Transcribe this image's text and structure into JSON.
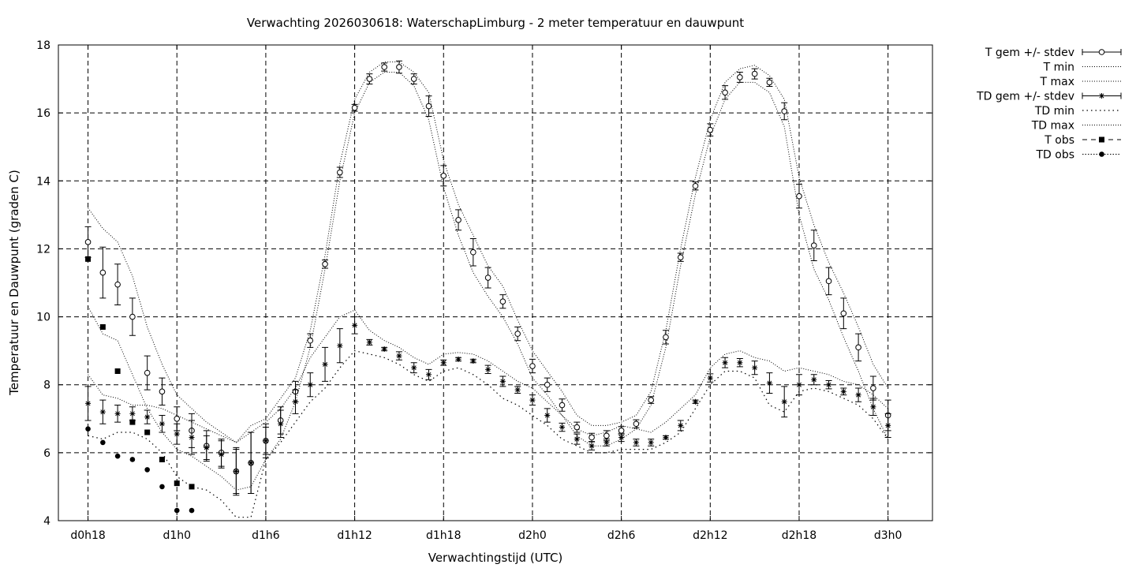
{
  "chart_data": {
    "type": "line",
    "title": "Verwachting 2026030618: WaterschapLimburg - 2 meter temperatuur en dauwpunt",
    "xlabel": "Verwachtingstijd (UTC)",
    "ylabel": "Temperatuur en Dauwpunt (graden C)",
    "x_unit": "hours",
    "xlim": [
      -2,
      57
    ],
    "ylim": [
      4,
      18
    ],
    "x_ticks": [
      {
        "x": 0,
        "label": "d0h18"
      },
      {
        "x": 6,
        "label": "d1h0"
      },
      {
        "x": 12,
        "label": "d1h6"
      },
      {
        "x": 18,
        "label": "d1h12"
      },
      {
        "x": 24,
        "label": "d1h18"
      },
      {
        "x": 30,
        "label": "d2h0"
      },
      {
        "x": 36,
        "label": "d2h6"
      },
      {
        "x": 42,
        "label": "d2h12"
      },
      {
        "x": 48,
        "label": "d2h18"
      },
      {
        "x": 54,
        "label": "d3h0"
      }
    ],
    "y_ticks": [
      4,
      6,
      8,
      10,
      12,
      14,
      16,
      18
    ],
    "grid": true,
    "legend_position": "right",
    "series": [
      {
        "name": "T gem +/- stdev",
        "kind": "errorbar",
        "marker": "open-circle",
        "x": [
          0,
          1,
          2,
          3,
          4,
          5,
          6,
          7,
          8,
          9,
          10,
          11,
          12,
          13,
          14,
          15,
          16,
          17,
          18,
          19,
          20,
          21,
          22,
          23,
          24,
          25,
          26,
          27,
          28,
          29,
          30,
          31,
          32,
          33,
          34,
          35,
          36,
          37,
          38,
          39,
          40,
          41,
          42,
          43,
          44,
          45,
          46,
          47,
          48,
          49,
          50,
          51,
          52,
          53,
          54
        ],
        "y": [
          12.2,
          11.3,
          10.95,
          10.0,
          8.35,
          7.8,
          7.0,
          6.65,
          6.2,
          6.0,
          5.45,
          5.7,
          6.35,
          6.95,
          7.8,
          9.3,
          11.55,
          14.25,
          16.15,
          17.0,
          17.35,
          17.35,
          17.0,
          16.2,
          14.15,
          12.85,
          11.9,
          11.15,
          10.45,
          9.5,
          8.55,
          8.0,
          7.4,
          6.75,
          6.45,
          6.5,
          6.65,
          6.85,
          7.55,
          9.4,
          11.75,
          13.85,
          15.5,
          16.6,
          17.05,
          17.15,
          16.9,
          16.05,
          13.55,
          12.1,
          11.05,
          10.1,
          9.1,
          7.9,
          7.1
        ],
        "err": [
          0.45,
          0.75,
          0.6,
          0.55,
          0.5,
          0.4,
          0.35,
          0.5,
          0.45,
          0.4,
          0.7,
          0.9,
          0.5,
          0.4,
          0.3,
          0.2,
          0.12,
          0.15,
          0.1,
          0.15,
          0.12,
          0.18,
          0.15,
          0.3,
          0.3,
          0.3,
          0.4,
          0.3,
          0.2,
          0.2,
          0.2,
          0.2,
          0.18,
          0.15,
          0.12,
          0.15,
          0.12,
          0.12,
          0.1,
          0.2,
          0.12,
          0.12,
          0.18,
          0.2,
          0.15,
          0.15,
          0.12,
          0.25,
          0.35,
          0.45,
          0.4,
          0.45,
          0.4,
          0.35,
          0.45
        ]
      },
      {
        "name": "T min",
        "kind": "line",
        "x": [
          0,
          1,
          2,
          3,
          4,
          5,
          6,
          7,
          8,
          9,
          10,
          11,
          12,
          13,
          14,
          15,
          16,
          17,
          18,
          19,
          20,
          21,
          22,
          23,
          24,
          25,
          26,
          27,
          28,
          29,
          30,
          31,
          32,
          33,
          34,
          35,
          36,
          37,
          38,
          39,
          40,
          41,
          42,
          43,
          44,
          45,
          46,
          47,
          48,
          49,
          50,
          51,
          52,
          53,
          54
        ],
        "y": [
          10.3,
          9.5,
          9.3,
          8.3,
          7.3,
          6.6,
          6.1,
          5.9,
          5.6,
          5.3,
          4.9,
          5.0,
          5.8,
          6.4,
          7.5,
          9.1,
          11.4,
          14.0,
          16.0,
          16.9,
          17.2,
          17.2,
          16.8,
          15.8,
          13.8,
          12.4,
          11.3,
          10.6,
          10.0,
          9.2,
          8.2,
          7.7,
          7.1,
          6.5,
          6.2,
          6.2,
          6.4,
          6.7,
          7.4,
          9.1,
          11.5,
          13.6,
          15.3,
          16.4,
          16.9,
          16.9,
          16.6,
          15.6,
          13.0,
          11.4,
          10.5,
          9.4,
          8.4,
          7.3,
          6.4
        ]
      },
      {
        "name": "T max",
        "kind": "line",
        "x": [
          0,
          1,
          2,
          3,
          4,
          5,
          6,
          7,
          8,
          9,
          10,
          11,
          12,
          13,
          14,
          15,
          16,
          17,
          18,
          19,
          20,
          21,
          22,
          23,
          24,
          25,
          26,
          27,
          28,
          29,
          30,
          31,
          32,
          33,
          34,
          35,
          36,
          37,
          38,
          39,
          40,
          41,
          42,
          43,
          44,
          45,
          46,
          47,
          48,
          49,
          50,
          51,
          52,
          53,
          54
        ],
        "y": [
          13.2,
          12.6,
          12.2,
          11.2,
          9.7,
          8.6,
          7.7,
          7.3,
          6.9,
          6.6,
          6.3,
          6.8,
          7.0,
          7.6,
          8.2,
          9.6,
          11.8,
          14.5,
          16.4,
          17.2,
          17.5,
          17.5,
          17.2,
          16.6,
          14.6,
          13.3,
          12.4,
          11.5,
          10.9,
          9.9,
          9.0,
          8.4,
          7.8,
          7.1,
          6.8,
          6.8,
          6.9,
          7.1,
          7.8,
          9.6,
          12.0,
          14.1,
          15.8,
          16.9,
          17.3,
          17.4,
          17.1,
          16.4,
          14.1,
          12.7,
          11.6,
          10.7,
          9.7,
          8.6,
          7.9
        ]
      },
      {
        "name": "TD gem +/- stdev",
        "kind": "errorbar",
        "marker": "star",
        "x": [
          0,
          1,
          2,
          3,
          4,
          5,
          6,
          7,
          8,
          9,
          10,
          11,
          12,
          13,
          14,
          15,
          16,
          17,
          18,
          19,
          20,
          21,
          22,
          23,
          24,
          25,
          26,
          27,
          28,
          29,
          30,
          31,
          32,
          33,
          34,
          35,
          36,
          37,
          38,
          39,
          40,
          41,
          42,
          43,
          44,
          45,
          46,
          47,
          48,
          49,
          50,
          51,
          52,
          53,
          54
        ],
        "y": [
          7.45,
          7.2,
          7.15,
          7.15,
          7.05,
          6.85,
          6.55,
          6.45,
          6.15,
          5.95,
          5.45,
          5.7,
          6.35,
          6.85,
          7.5,
          8.0,
          8.6,
          9.15,
          9.75,
          9.25,
          9.05,
          8.85,
          8.5,
          8.3,
          8.65,
          8.75,
          8.7,
          8.45,
          8.1,
          7.85,
          7.55,
          7.1,
          6.75,
          6.4,
          6.2,
          6.3,
          6.45,
          6.3,
          6.3,
          6.45,
          6.8,
          7.5,
          8.2,
          8.65,
          8.65,
          8.5,
          8.05,
          7.5,
          8.0,
          8.15,
          8.0,
          7.8,
          7.7,
          7.35,
          6.8
        ],
        "err": [
          0.5,
          0.35,
          0.25,
          0.2,
          0.2,
          0.25,
          0.3,
          0.5,
          0.35,
          0.4,
          0.65,
          0.9,
          0.4,
          0.4,
          0.35,
          0.35,
          0.5,
          0.5,
          0.25,
          0.08,
          0.05,
          0.12,
          0.15,
          0.15,
          0.08,
          0.05,
          0.05,
          0.12,
          0.15,
          0.1,
          0.15,
          0.2,
          0.12,
          0.15,
          0.12,
          0.1,
          0.12,
          0.1,
          0.1,
          0.05,
          0.15,
          0.05,
          0.12,
          0.15,
          0.12,
          0.2,
          0.3,
          0.45,
          0.3,
          0.15,
          0.12,
          0.1,
          0.2,
          0.25,
          0.35
        ]
      },
      {
        "name": "TD min",
        "kind": "line",
        "x": [
          0,
          1,
          2,
          3,
          4,
          5,
          6,
          7,
          8,
          9,
          10,
          11,
          12,
          13,
          14,
          15,
          16,
          17,
          18,
          19,
          20,
          21,
          22,
          23,
          24,
          25,
          26,
          27,
          28,
          29,
          30,
          31,
          32,
          33,
          34,
          35,
          36,
          37,
          38,
          39,
          40,
          41,
          42,
          43,
          44,
          45,
          46,
          47,
          48,
          49,
          50,
          51,
          52,
          53,
          54
        ],
        "y": [
          6.5,
          6.4,
          6.6,
          6.6,
          6.4,
          6.0,
          5.3,
          5.0,
          4.9,
          4.6,
          4.1,
          4.1,
          5.8,
          6.3,
          6.9,
          7.5,
          7.9,
          8.5,
          9.0,
          8.9,
          8.8,
          8.6,
          8.3,
          8.1,
          8.4,
          8.5,
          8.3,
          8.0,
          7.6,
          7.4,
          7.1,
          6.8,
          6.4,
          6.2,
          6.0,
          6.0,
          6.1,
          6.1,
          6.1,
          6.3,
          6.6,
          7.3,
          8.0,
          8.4,
          8.4,
          8.2,
          7.4,
          7.2,
          7.8,
          7.9,
          7.8,
          7.6,
          7.4,
          7.0,
          6.4
        ]
      },
      {
        "name": "TD max",
        "kind": "line",
        "x": [
          0,
          1,
          2,
          3,
          4,
          5,
          6,
          7,
          8,
          9,
          10,
          11,
          12,
          13,
          14,
          15,
          16,
          17,
          18,
          19,
          20,
          21,
          22,
          23,
          24,
          25,
          26,
          27,
          28,
          29,
          30,
          31,
          32,
          33,
          34,
          35,
          36,
          37,
          38,
          39,
          40,
          41,
          42,
          43,
          44,
          45,
          46,
          47,
          48,
          49,
          50,
          51,
          52,
          53,
          54
        ],
        "y": [
          8.3,
          7.7,
          7.6,
          7.4,
          7.4,
          7.3,
          7.1,
          6.9,
          6.7,
          6.5,
          6.3,
          6.6,
          6.9,
          7.3,
          7.9,
          8.8,
          9.4,
          10.0,
          10.2,
          9.6,
          9.3,
          9.1,
          8.8,
          8.6,
          8.9,
          8.95,
          8.9,
          8.7,
          8.4,
          8.1,
          7.9,
          7.5,
          7.1,
          6.7,
          6.5,
          6.6,
          6.8,
          6.7,
          6.6,
          6.9,
          7.3,
          7.7,
          8.5,
          8.9,
          9.0,
          8.8,
          8.7,
          8.4,
          8.5,
          8.4,
          8.3,
          8.1,
          8.0,
          7.7,
          7.3
        ]
      },
      {
        "name": "T obs",
        "kind": "marker",
        "marker": "filled-square",
        "x": [
          0,
          1,
          2,
          3,
          4,
          5,
          6,
          7
        ],
        "y": [
          11.7,
          9.7,
          8.4,
          6.9,
          6.6,
          5.8,
          5.1,
          5.0
        ]
      },
      {
        "name": "TD obs",
        "kind": "marker",
        "marker": "filled-circle",
        "x": [
          0,
          1,
          2,
          3,
          4,
          5,
          6,
          7
        ],
        "y": [
          6.7,
          6.3,
          5.9,
          5.8,
          5.5,
          5.0,
          4.3,
          4.3
        ]
      }
    ]
  }
}
